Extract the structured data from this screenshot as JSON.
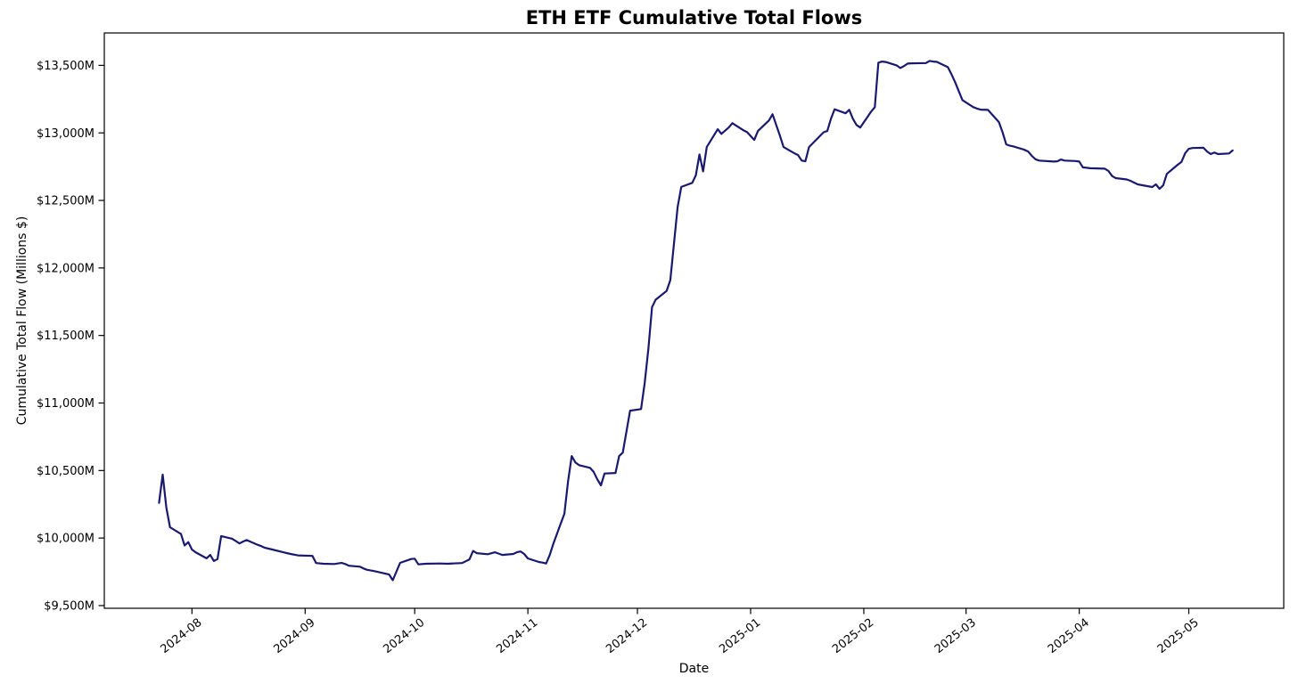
{
  "chart_data": {
    "type": "line",
    "title": "ETH ETF Cumulative Total Flows",
    "xlabel": "Date",
    "ylabel": "Cumulative Total Flow (Millions $)",
    "line_color": "#191970",
    "line_width": 2.2,
    "background_color": "#ffffff",
    "grid": false,
    "legend": "none",
    "xlim": [
      "2024-07-08",
      "2025-05-27"
    ],
    "ylim": [
      9480,
      13740
    ],
    "x_ticks": [
      "2024-08",
      "2024-09",
      "2024-10",
      "2024-11",
      "2024-12",
      "2025-01",
      "2025-02",
      "2025-03",
      "2025-04",
      "2025-05"
    ],
    "y_ticks": [
      9500,
      10000,
      10500,
      11000,
      11500,
      12000,
      12500,
      13000,
      13500
    ],
    "y_tick_labels": [
      "$9,500M",
      "$10,000M",
      "$10,500M",
      "$11,000M",
      "$11,500M",
      "$12,000M",
      "$12,500M",
      "$13,000M",
      "$13,500M"
    ],
    "series": [
      {
        "name": "Cumulative Total Flow",
        "dates": [
          "2024-07-23",
          "2024-07-24",
          "2024-07-25",
          "2024-07-26",
          "2024-07-29",
          "2024-07-30",
          "2024-07-31",
          "2024-08-01",
          "2024-08-02",
          "2024-08-05",
          "2024-08-06",
          "2024-08-07",
          "2024-08-08",
          "2024-08-09",
          "2024-08-12",
          "2024-08-13",
          "2024-08-14",
          "2024-08-15",
          "2024-08-16",
          "2024-08-19",
          "2024-08-20",
          "2024-08-21",
          "2024-08-23",
          "2024-08-26",
          "2024-08-28",
          "2024-08-30",
          "2024-09-03",
          "2024-09-04",
          "2024-09-06",
          "2024-09-09",
          "2024-09-11",
          "2024-09-12",
          "2024-09-13",
          "2024-09-16",
          "2024-09-17",
          "2024-09-18",
          "2024-09-20",
          "2024-09-24",
          "2024-09-25",
          "2024-09-27",
          "2024-09-30",
          "2024-10-01",
          "2024-10-02",
          "2024-10-04",
          "2024-10-08",
          "2024-10-10",
          "2024-10-14",
          "2024-10-16",
          "2024-10-17",
          "2024-10-18",
          "2024-10-21",
          "2024-10-23",
          "2024-10-25",
          "2024-10-28",
          "2024-10-29",
          "2024-10-30",
          "2024-10-31",
          "2024-11-01",
          "2024-11-04",
          "2024-11-05",
          "2024-11-06",
          "2024-11-07",
          "2024-11-08",
          "2024-11-11",
          "2024-11-12",
          "2024-11-13",
          "2024-11-14",
          "2024-11-15",
          "2024-11-18",
          "2024-11-19",
          "2024-11-20",
          "2024-11-21",
          "2024-11-22",
          "2024-11-25",
          "2024-11-26",
          "2024-11-27",
          "2024-11-29",
          "2024-12-02",
          "2024-12-03",
          "2024-12-04",
          "2024-12-05",
          "2024-12-06",
          "2024-12-09",
          "2024-12-10",
          "2024-12-11",
          "2024-12-12",
          "2024-12-13",
          "2024-12-16",
          "2024-12-17",
          "2024-12-18",
          "2024-12-19",
          "2024-12-20",
          "2024-12-23",
          "2024-12-24",
          "2024-12-26",
          "2024-12-27",
          "2024-12-30",
          "2024-12-31",
          "2025-01-02",
          "2025-01-03",
          "2025-01-06",
          "2025-01-07",
          "2025-01-08",
          "2025-01-09",
          "2025-01-10",
          "2025-01-13",
          "2025-01-14",
          "2025-01-15",
          "2025-01-16",
          "2025-01-17",
          "2025-01-21",
          "2025-01-22",
          "2025-01-23",
          "2025-01-24",
          "2025-01-27",
          "2025-01-28",
          "2025-01-29",
          "2025-01-30",
          "2025-01-31",
          "2025-02-03",
          "2025-02-04",
          "2025-02-05",
          "2025-02-06",
          "2025-02-07",
          "2025-02-10",
          "2025-02-11",
          "2025-02-12",
          "2025-02-13",
          "2025-02-14",
          "2025-02-18",
          "2025-02-19",
          "2025-02-20",
          "2025-02-21",
          "2025-02-24",
          "2025-02-25",
          "2025-02-26",
          "2025-02-27",
          "2025-02-28",
          "2025-03-03",
          "2025-03-04",
          "2025-03-05",
          "2025-03-07",
          "2025-03-10",
          "2025-03-11",
          "2025-03-12",
          "2025-03-13",
          "2025-03-14",
          "2025-03-17",
          "2025-03-18",
          "2025-03-19",
          "2025-03-20",
          "2025-03-21",
          "2025-03-24",
          "2025-03-25",
          "2025-03-26",
          "2025-03-27",
          "2025-03-28",
          "2025-03-31",
          "2025-04-01",
          "2025-04-02",
          "2025-04-04",
          "2025-04-08",
          "2025-04-09",
          "2025-04-10",
          "2025-04-11",
          "2025-04-14",
          "2025-04-15",
          "2025-04-16",
          "2025-04-17",
          "2025-04-21",
          "2025-04-22",
          "2025-04-23",
          "2025-04-24",
          "2025-04-25",
          "2025-04-28",
          "2025-04-29",
          "2025-04-30",
          "2025-05-01",
          "2025-05-02",
          "2025-05-05",
          "2025-05-06",
          "2025-05-07",
          "2025-05-08",
          "2025-05-09",
          "2025-05-12",
          "2025-05-13"
        ],
        "values": [
          10260,
          10470,
          10225,
          10080,
          10030,
          9945,
          9970,
          9915,
          9895,
          9850,
          9875,
          9830,
          9845,
          10015,
          9995,
          9978,
          9960,
          9974,
          9985,
          9950,
          9940,
          9928,
          9915,
          9895,
          9882,
          9872,
          9868,
          9815,
          9810,
          9808,
          9816,
          9808,
          9795,
          9788,
          9775,
          9765,
          9755,
          9730,
          9688,
          9816,
          9845,
          9847,
          9805,
          9810,
          9812,
          9810,
          9815,
          9842,
          9905,
          9888,
          9880,
          9895,
          9875,
          9882,
          9895,
          9901,
          9882,
          9849,
          9823,
          9818,
          9812,
          9875,
          9960,
          10180,
          10420,
          10607,
          10560,
          10540,
          10520,
          10490,
          10435,
          10390,
          10478,
          10482,
          10607,
          10633,
          10943,
          10955,
          11150,
          11400,
          11710,
          11765,
          11830,
          11910,
          12180,
          12450,
          12600,
          12630,
          12685,
          12840,
          12715,
          12895,
          13027,
          12993,
          13040,
          13072,
          13020,
          13007,
          12948,
          13014,
          13092,
          13138,
          13059,
          12980,
          12895,
          12849,
          12836,
          12795,
          12790,
          12895,
          13005,
          13014,
          13105,
          13175,
          13145,
          13171,
          13105,
          13059,
          13040,
          13158,
          13191,
          13520,
          13528,
          13525,
          13500,
          13480,
          13495,
          13513,
          13515,
          13517,
          13533,
          13528,
          13526,
          13487,
          13434,
          13375,
          13309,
          13243,
          13191,
          13180,
          13172,
          13170,
          13080,
          13005,
          12915,
          12905,
          12900,
          12875,
          12862,
          12830,
          12805,
          12795,
          12790,
          12788,
          12790,
          12803,
          12795,
          12792,
          12788,
          12745,
          12738,
          12735,
          12718,
          12680,
          12665,
          12655,
          12645,
          12632,
          12619,
          12599,
          12619,
          12586,
          12612,
          12697,
          12765,
          12785,
          12849,
          12882,
          12888,
          12890,
          12862,
          12843,
          12855,
          12843,
          12848,
          12870
        ]
      }
    ]
  }
}
